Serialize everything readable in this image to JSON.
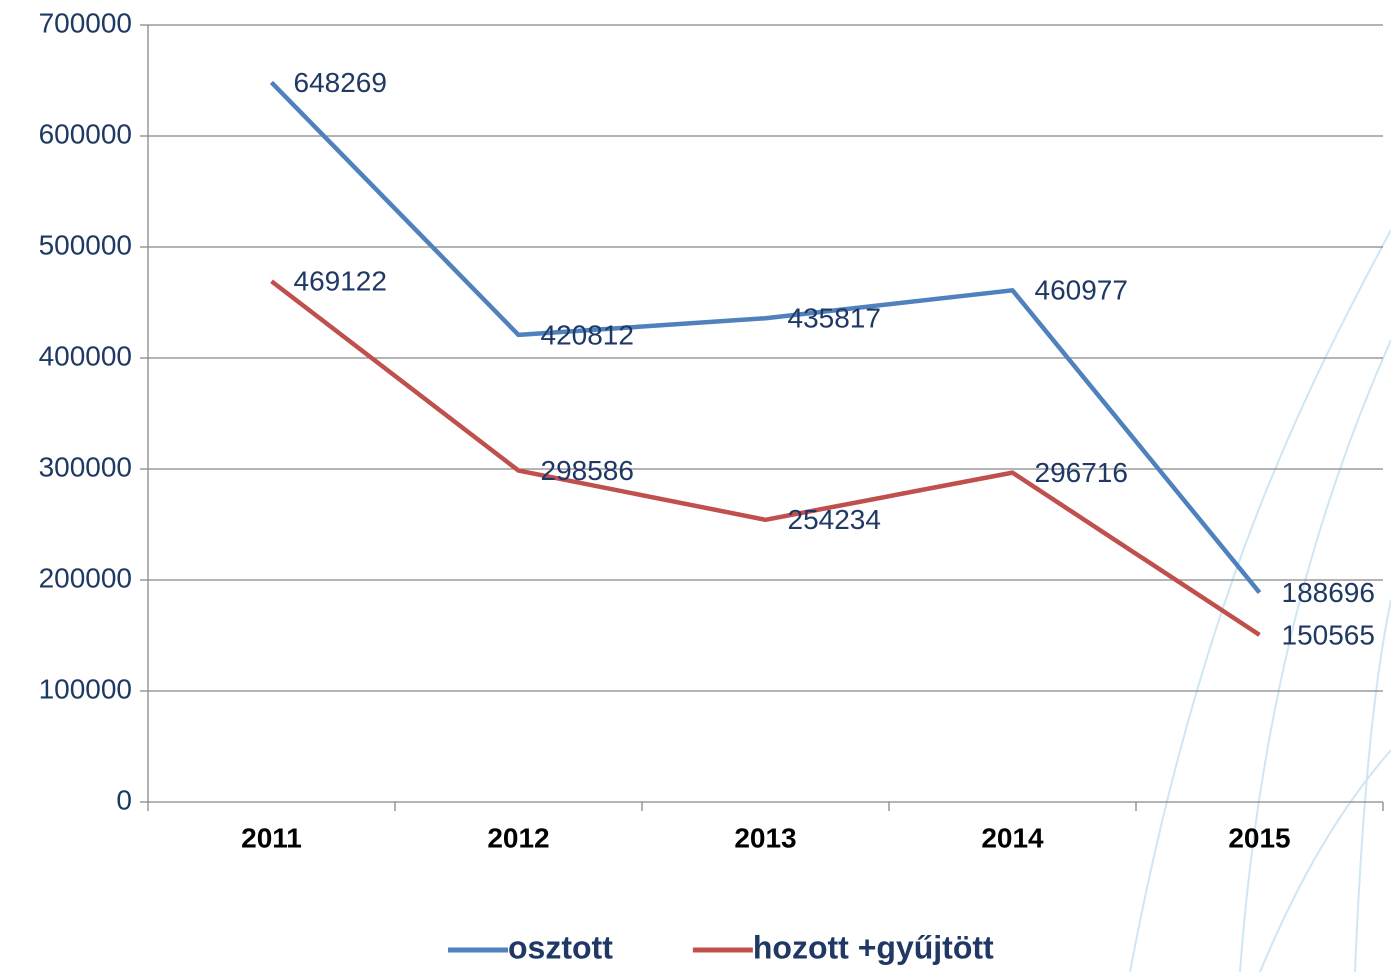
{
  "chart_data": {
    "type": "line",
    "categories": [
      "2011",
      "2012",
      "2013",
      "2014",
      "2015"
    ],
    "series": [
      {
        "name": "osztott",
        "color": "#4f81bd",
        "values": [
          648269,
          420812,
          435817,
          460977,
          188696
        ]
      },
      {
        "name": "hozott +gyűjtött",
        "color": "#c0504d",
        "values": [
          469122,
          298586,
          254234,
          296716,
          150565
        ]
      }
    ],
    "ylim": [
      0,
      700000
    ],
    "yticks": [
      0,
      100000,
      200000,
      300000,
      400000,
      500000,
      600000,
      700000
    ],
    "grid": true,
    "legend": "bottom"
  }
}
